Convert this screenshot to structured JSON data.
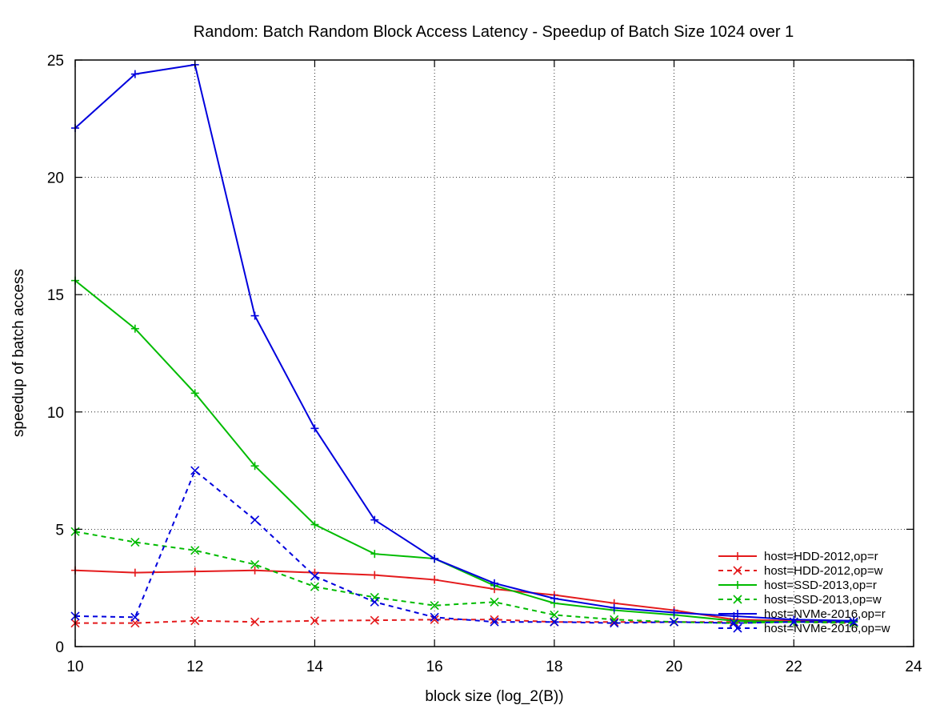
{
  "chart_data": {
    "type": "line",
    "title": "Random: Batch Random Block Access Latency - Speedup of Batch Size 1024 over 1",
    "xlabel": "block size (log_2(B))",
    "ylabel": "speedup of batch access",
    "xlim": [
      10,
      24
    ],
    "ylim": [
      0,
      25
    ],
    "xticks": [
      10,
      12,
      14,
      16,
      18,
      20,
      22,
      24
    ],
    "yticks": [
      0,
      5,
      10,
      15,
      20,
      25
    ],
    "xtick_labels": [
      "10",
      "12",
      "14",
      "16",
      "18",
      "20",
      "22",
      "24"
    ],
    "ytick_labels": [
      "0",
      "5",
      "10",
      "15",
      "20",
      "25"
    ],
    "grid": true,
    "legend_position": "bottom-right",
    "series": [
      {
        "name": "host=HDD-2012,op=r",
        "color": "#e41a1c",
        "dashed": false,
        "marker": "plus",
        "x": [
          10,
          11,
          12,
          13,
          14,
          15,
          16,
          17,
          18,
          19,
          20,
          21,
          22,
          23
        ],
        "y": [
          3.25,
          3.15,
          3.2,
          3.25,
          3.15,
          3.05,
          2.85,
          2.45,
          2.2,
          1.85,
          1.55,
          1.15,
          1.1,
          1.05
        ]
      },
      {
        "name": "host=HDD-2012,op=w",
        "color": "#e41a1c",
        "dashed": true,
        "marker": "cross",
        "x": [
          10,
          11,
          12,
          13,
          14,
          15,
          16,
          17,
          18,
          19,
          20,
          21,
          22,
          23
        ],
        "y": [
          1.0,
          1.0,
          1.1,
          1.05,
          1.1,
          1.12,
          1.15,
          1.15,
          1.05,
          1.05,
          1.05,
          1.05,
          1.05,
          1.0
        ]
      },
      {
        "name": "host=SSD-2013,op=r",
        "color": "#00bb00",
        "dashed": false,
        "marker": "plus",
        "x": [
          10,
          11,
          12,
          13,
          14,
          15,
          16,
          17,
          18,
          19,
          20,
          21,
          22,
          23
        ],
        "y": [
          15.6,
          13.55,
          10.8,
          7.7,
          5.2,
          3.95,
          3.75,
          2.6,
          1.85,
          1.55,
          1.35,
          1.1,
          1.05,
          1.05
        ]
      },
      {
        "name": "host=SSD-2013,op=w",
        "color": "#00bb00",
        "dashed": true,
        "marker": "cross",
        "x": [
          10,
          11,
          12,
          13,
          14,
          15,
          16,
          17,
          18,
          19,
          20,
          21,
          22,
          23
        ],
        "y": [
          4.9,
          4.45,
          4.1,
          3.5,
          2.55,
          2.1,
          1.75,
          1.9,
          1.35,
          1.15,
          1.05,
          1.0,
          1.05,
          1.0
        ]
      },
      {
        "name": "host=NVMe-2016,op=r",
        "color": "#0000dd",
        "dashed": false,
        "marker": "plus",
        "x": [
          10,
          11,
          12,
          13,
          14,
          15,
          16,
          17,
          18,
          19,
          20,
          21,
          22,
          23
        ],
        "y": [
          22.1,
          24.4,
          24.8,
          14.1,
          9.3,
          5.4,
          3.75,
          2.7,
          2.05,
          1.65,
          1.45,
          1.3,
          1.15,
          1.1
        ]
      },
      {
        "name": "host=NVMe-2016,op=w",
        "color": "#0000dd",
        "dashed": true,
        "marker": "cross",
        "x": [
          10,
          11,
          12,
          13,
          14,
          15,
          16,
          17,
          18,
          19,
          20,
          21,
          22,
          23
        ],
        "y": [
          1.3,
          1.25,
          7.5,
          5.4,
          3.0,
          1.9,
          1.25,
          1.05,
          1.05,
          1.0,
          1.05,
          1.0,
          1.05,
          1.05
        ]
      }
    ]
  }
}
